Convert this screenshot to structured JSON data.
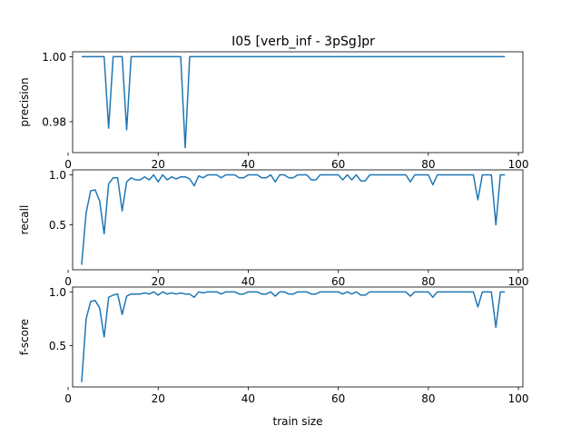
{
  "figure": {
    "title": "I05 [verb_inf - 3pSg]pr",
    "xlabel": "train size"
  },
  "colors": {
    "line": "#1f77b4",
    "background": "#ffffff",
    "axes": "#000000"
  },
  "chart_data": [
    {
      "type": "line",
      "ylabel": "precision",
      "xlim": [
        1,
        101
      ],
      "ylim": [
        0.9705,
        1.0015
      ],
      "xticks": [
        0,
        20,
        40,
        60,
        80,
        100
      ],
      "xtick_labels": [
        "0",
        "20",
        "40",
        "60",
        "80",
        "100"
      ],
      "yticks": [
        0.98,
        1.0
      ],
      "ytick_labels": [
        "0.98",
        "1.00"
      ],
      "grid": false,
      "x": [
        3,
        4,
        5,
        6,
        7,
        8,
        9,
        10,
        11,
        12,
        13,
        14,
        15,
        20,
        25,
        26,
        27,
        30,
        40,
        50,
        60,
        70,
        80,
        90,
        97
      ],
      "y": [
        1.0,
        1.0,
        1.0,
        1.0,
        1.0,
        1.0,
        0.978,
        1.0,
        1.0,
        1.0,
        0.9775,
        1.0,
        1.0,
        1.0,
        1.0,
        0.972,
        1.0,
        1.0,
        1.0,
        1.0,
        1.0,
        1.0,
        1.0,
        1.0,
        1.0
      ]
    },
    {
      "type": "line",
      "ylabel": "recall",
      "xlim": [
        1,
        101
      ],
      "ylim": [
        0.05,
        1.05
      ],
      "xticks": [
        0,
        20,
        40,
        60,
        80,
        100
      ],
      "xtick_labels": [
        "0",
        "20",
        "40",
        "60",
        "80",
        "100"
      ],
      "yticks": [
        0.5,
        1.0
      ],
      "ytick_labels": [
        "0.5",
        "1.0"
      ],
      "grid": false,
      "x": [
        3,
        4,
        5,
        6,
        7,
        8,
        9,
        10,
        11,
        12,
        13,
        14,
        15,
        16,
        17,
        18,
        19,
        20,
        21,
        22,
        23,
        24,
        25,
        26,
        27,
        28,
        29,
        30,
        31,
        32,
        33,
        34,
        35,
        36,
        37,
        38,
        39,
        40,
        41,
        42,
        43,
        44,
        45,
        46,
        47,
        48,
        49,
        50,
        51,
        52,
        53,
        54,
        55,
        56,
        57,
        58,
        59,
        60,
        61,
        62,
        63,
        64,
        65,
        66,
        67,
        68,
        69,
        70,
        71,
        72,
        73,
        74,
        75,
        76,
        77,
        78,
        79,
        80,
        81,
        82,
        83,
        84,
        85,
        86,
        87,
        88,
        89,
        90,
        91,
        92,
        93,
        94,
        95,
        96,
        97
      ],
      "y": [
        0.1,
        0.62,
        0.84,
        0.85,
        0.74,
        0.41,
        0.91,
        0.97,
        0.97,
        0.64,
        0.93,
        0.97,
        0.95,
        0.95,
        0.98,
        0.95,
        1.0,
        0.93,
        1.0,
        0.95,
        0.98,
        0.96,
        0.98,
        0.98,
        0.96,
        0.89,
        0.99,
        0.97,
        1.0,
        1.0,
        1.0,
        0.97,
        1.0,
        1.0,
        1.0,
        0.97,
        0.97,
        1.0,
        1.0,
        1.0,
        0.97,
        0.97,
        1.0,
        0.93,
        1.0,
        1.0,
        0.97,
        0.97,
        1.0,
        1.0,
        1.0,
        0.95,
        0.95,
        1.0,
        1.0,
        1.0,
        1.0,
        1.0,
        0.95,
        1.0,
        0.95,
        1.0,
        0.94,
        0.94,
        1.0,
        1.0,
        1.0,
        1.0,
        1.0,
        1.0,
        1.0,
        1.0,
        1.0,
        0.93,
        1.0,
        1.0,
        1.0,
        1.0,
        0.9,
        1.0,
        1.0,
        1.0,
        1.0,
        1.0,
        1.0,
        1.0,
        1.0,
        1.0,
        0.75,
        1.0,
        1.0,
        1.0,
        0.5,
        1.0,
        1.0
      ]
    },
    {
      "type": "line",
      "ylabel": "f-score",
      "xlim": [
        1,
        101
      ],
      "ylim": [
        0.115,
        1.045
      ],
      "xticks": [
        0,
        20,
        40,
        60,
        80,
        100
      ],
      "xtick_labels": [
        "0",
        "20",
        "40",
        "60",
        "80",
        "100"
      ],
      "yticks": [
        0.5,
        1.0
      ],
      "ytick_labels": [
        "0.5",
        "1.0"
      ],
      "grid": false,
      "x": [
        3,
        4,
        5,
        6,
        7,
        8,
        9,
        10,
        11,
        12,
        13,
        14,
        15,
        16,
        17,
        18,
        19,
        20,
        21,
        22,
        23,
        24,
        25,
        26,
        27,
        28,
        29,
        30,
        31,
        32,
        33,
        34,
        35,
        36,
        37,
        38,
        39,
        40,
        41,
        42,
        43,
        44,
        45,
        46,
        47,
        48,
        49,
        50,
        51,
        52,
        53,
        54,
        55,
        56,
        57,
        58,
        59,
        60,
        61,
        62,
        63,
        64,
        65,
        66,
        67,
        68,
        69,
        70,
        71,
        72,
        73,
        74,
        75,
        76,
        77,
        78,
        79,
        80,
        81,
        82,
        83,
        84,
        85,
        86,
        87,
        88,
        89,
        90,
        91,
        92,
        93,
        94,
        95,
        96,
        97
      ],
      "y": [
        0.16,
        0.75,
        0.91,
        0.92,
        0.85,
        0.58,
        0.95,
        0.97,
        0.98,
        0.79,
        0.96,
        0.98,
        0.98,
        0.98,
        0.99,
        0.98,
        1.0,
        0.97,
        1.0,
        0.98,
        0.99,
        0.98,
        0.99,
        0.98,
        0.98,
        0.95,
        1.0,
        0.99,
        1.0,
        1.0,
        1.0,
        0.98,
        1.0,
        1.0,
        1.0,
        0.98,
        0.98,
        1.0,
        1.0,
        1.0,
        0.98,
        0.98,
        1.0,
        0.96,
        1.0,
        1.0,
        0.98,
        0.98,
        1.0,
        1.0,
        1.0,
        0.98,
        0.98,
        1.0,
        1.0,
        1.0,
        1.0,
        1.0,
        0.98,
        1.0,
        0.98,
        1.0,
        0.97,
        0.97,
        1.0,
        1.0,
        1.0,
        1.0,
        1.0,
        1.0,
        1.0,
        1.0,
        1.0,
        0.96,
        1.0,
        1.0,
        1.0,
        1.0,
        0.95,
        1.0,
        1.0,
        1.0,
        1.0,
        1.0,
        1.0,
        1.0,
        1.0,
        1.0,
        0.86,
        1.0,
        1.0,
        1.0,
        0.67,
        1.0,
        1.0
      ]
    }
  ]
}
